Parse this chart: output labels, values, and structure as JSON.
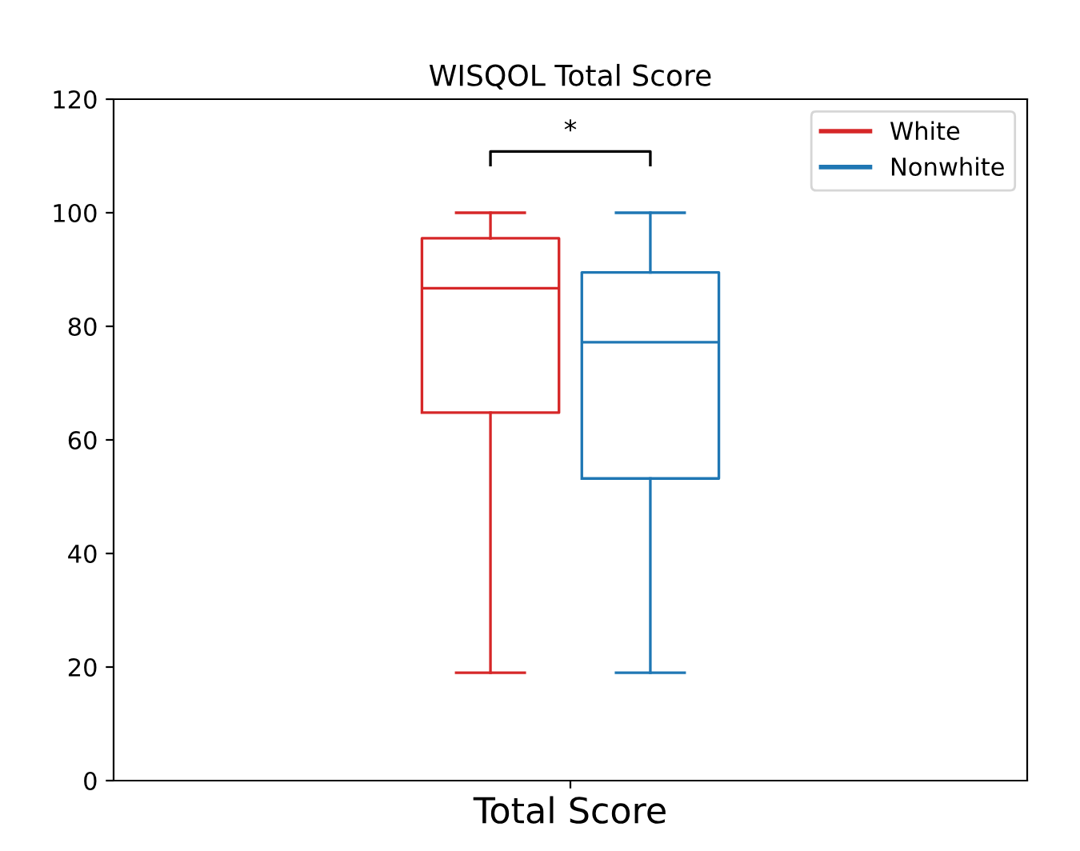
{
  "chart_data": {
    "type": "box",
    "title": "WISQOL Total Score",
    "categories": [
      "Total Score"
    ],
    "series": [
      {
        "name": "White",
        "color": "#d62728",
        "boxes": [
          {
            "low": 19,
            "q1": 64.8,
            "median": 86.7,
            "q3": 95.5,
            "high": 100
          }
        ]
      },
      {
        "name": "Nonwhite",
        "color": "#1f77b4",
        "boxes": [
          {
            "low": 19,
            "q1": 53.2,
            "median": 77.2,
            "q3": 89.5,
            "high": 100
          }
        ]
      }
    ],
    "ylim": [
      0,
      120
    ],
    "yticks": [
      0,
      20,
      40,
      60,
      80,
      100,
      120
    ],
    "grid": false,
    "legend": "top right",
    "annotations": [
      "*"
    ]
  }
}
